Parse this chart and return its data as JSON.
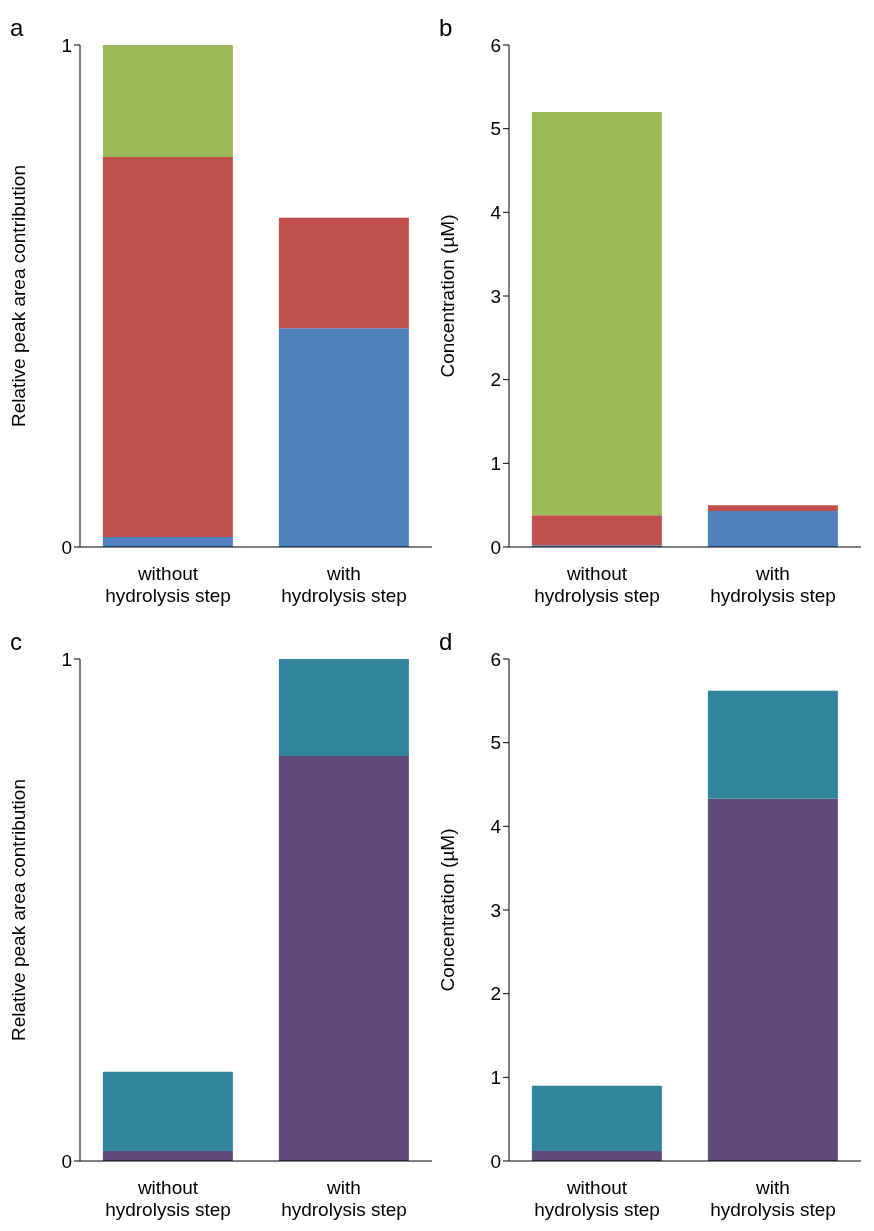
{
  "chart_data": [
    {
      "type": "bar",
      "title": "a",
      "ylabel": "Relative peak area contribution",
      "categories": [
        "without hydrolysis step",
        "with hydrolysis step"
      ],
      "stacked": true,
      "ylim": [
        0,
        1
      ],
      "yticks": [
        0,
        1
      ],
      "series": [
        {
          "color": "#4f81bd",
          "values": [
            0.02,
            0.436
          ]
        },
        {
          "color": "#c0504d",
          "values": [
            0.757,
            0.22
          ]
        },
        {
          "color": "#9bbb59",
          "values": [
            0.223,
            0
          ]
        }
      ]
    },
    {
      "type": "bar",
      "title": "b",
      "ylabel": "Concentration (µM)",
      "categories": [
        "without hydrolysis step",
        "with hydrolysis step"
      ],
      "stacked": true,
      "ylim": [
        0,
        6
      ],
      "yticks": [
        0,
        1,
        2,
        3,
        4,
        5,
        6
      ],
      "series": [
        {
          "color": "#4f81bd",
          "values": [
            0.02,
            0.43
          ]
        },
        {
          "color": "#c0504d",
          "values": [
            0.36,
            0.07
          ]
        },
        {
          "color": "#9bbb59",
          "values": [
            4.82,
            0
          ]
        }
      ]
    },
    {
      "type": "bar",
      "title": "c",
      "ylabel": "Relative peak area contribution",
      "categories": [
        "without hydrolysis step",
        "with hydrolysis step"
      ],
      "stacked": true,
      "ylim": [
        0,
        1
      ],
      "yticks": [
        0,
        1
      ],
      "series": [
        {
          "color": "#604a7b",
          "values": [
            0.02,
            0.807
          ]
        },
        {
          "color": "#31859c",
          "values": [
            0.158,
            0.193
          ]
        }
      ]
    },
    {
      "type": "bar",
      "title": "d",
      "ylabel": "Concentration (µM)",
      "categories": [
        "without hydrolysis step",
        "with hydrolysis step"
      ],
      "stacked": true,
      "ylim": [
        0,
        6
      ],
      "yticks": [
        0,
        1,
        2,
        3,
        4,
        5,
        6
      ],
      "series": [
        {
          "color": "#604a7b",
          "values": [
            0.12,
            4.33
          ]
        },
        {
          "color": "#31859c",
          "values": [
            0.78,
            1.29
          ]
        }
      ]
    }
  ]
}
